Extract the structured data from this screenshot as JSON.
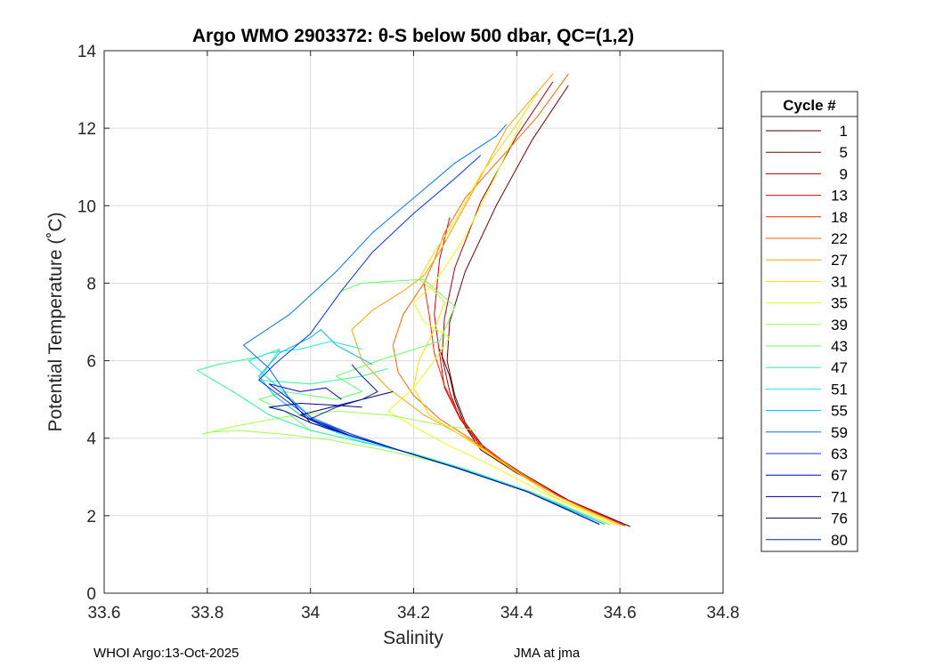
{
  "chart_data": {
    "type": "line",
    "title": "Argo WMO 2903372: θ-S below 500 dbar,  QC=(1,2)",
    "xlabel": "Salinity",
    "ylabel": "Potential Temperature (˚C)",
    "xlim": [
      33.6,
      34.8
    ],
    "ylim": [
      0,
      14
    ],
    "xticks": [
      33.6,
      33.8,
      34,
      34.2,
      34.4,
      34.6,
      34.8
    ],
    "xtick_labels": [
      "33.6",
      "33.8",
      "34",
      "34.2",
      "34.4",
      "34.6",
      "34.8"
    ],
    "yticks": [
      0,
      2,
      4,
      6,
      8,
      10,
      12,
      14
    ],
    "ytick_labels": [
      "0",
      "2",
      "4",
      "6",
      "8",
      "10",
      "12",
      "14"
    ],
    "grid": true,
    "legend_title": "Cycle #",
    "legend_position": "right-outside",
    "series": [
      {
        "name": "1",
        "color": "#4a0000",
        "x": [
          34.62,
          34.5,
          34.4,
          34.33,
          34.3,
          34.28,
          34.27,
          34.25
        ],
        "y": [
          1.72,
          2.4,
          3.1,
          3.7,
          4.3,
          5.0,
          5.6,
          6.3
        ]
      },
      {
        "name": "5",
        "color": "#7a0000",
        "x": [
          34.62,
          34.5,
          34.41,
          34.34,
          34.3,
          34.28,
          34.265,
          34.27,
          34.3,
          34.36,
          34.43,
          34.5
        ],
        "y": [
          1.72,
          2.4,
          3.1,
          3.7,
          4.4,
          5.1,
          6.0,
          7.0,
          8.3,
          10.0,
          11.7,
          13.1
        ]
      },
      {
        "name": "9",
        "color": "#b20000",
        "x": [
          34.61,
          34.49,
          34.4,
          34.33,
          34.29,
          34.27,
          34.255,
          34.26,
          34.28,
          34.33,
          34.4,
          34.47
        ],
        "y": [
          1.74,
          2.45,
          3.15,
          3.8,
          4.5,
          5.2,
          6.1,
          7.1,
          8.4,
          10.1,
          11.8,
          13.2
        ]
      },
      {
        "name": "13",
        "color": "#e00000",
        "x": [
          34.61,
          34.49,
          34.4,
          34.33,
          34.29,
          34.26,
          34.25,
          34.24,
          34.25,
          34.27
        ],
        "y": [
          1.74,
          2.45,
          3.15,
          3.8,
          4.5,
          5.3,
          6.2,
          7.2,
          8.6,
          9.7
        ]
      },
      {
        "name": "18",
        "color": "#ff2200",
        "x": [
          34.61,
          34.49,
          34.4,
          34.33,
          34.29,
          34.26,
          34.24,
          34.23,
          34.22
        ],
        "y": [
          1.74,
          2.45,
          3.15,
          3.85,
          4.55,
          5.35,
          6.2,
          7.2,
          8.0
        ]
      },
      {
        "name": "22",
        "color": "#ff6600",
        "x": [
          34.6,
          34.48,
          34.39,
          34.32,
          34.25,
          34.2,
          34.17,
          34.16,
          34.18,
          34.22,
          34.24,
          34.26,
          34.3,
          34.38,
          34.44,
          34.5
        ],
        "y": [
          1.75,
          2.5,
          3.2,
          3.9,
          4.5,
          5.1,
          5.7,
          6.4,
          7.2,
          8.0,
          8.6,
          9.3,
          10.2,
          11.4,
          12.3,
          13.4
        ]
      },
      {
        "name": "27",
        "color": "#ffa200",
        "x": [
          34.6,
          34.48,
          34.39,
          34.31,
          34.22,
          34.15,
          34.1,
          34.08,
          34.12,
          34.18,
          34.22,
          34.25,
          34.3,
          34.38,
          34.47
        ],
        "y": [
          1.75,
          2.5,
          3.25,
          3.95,
          4.6,
          5.3,
          6.0,
          6.8,
          7.3,
          7.8,
          8.2,
          8.8,
          10.0,
          12.0,
          13.4
        ]
      },
      {
        "name": "31",
        "color": "#ffdd00",
        "x": [
          34.6,
          34.47,
          34.38,
          34.3,
          34.23,
          34.2,
          34.21,
          34.24,
          34.26,
          34.24,
          34.21,
          34.24,
          34.28,
          34.33,
          34.4,
          34.44
        ],
        "y": [
          1.75,
          2.5,
          3.3,
          4.0,
          4.6,
          5.3,
          6.0,
          6.8,
          7.5,
          7.8,
          8.1,
          8.8,
          9.6,
          10.8,
          12.1,
          12.9
        ]
      },
      {
        "name": "35",
        "color": "#e6ff1a",
        "x": [
          34.59,
          34.45,
          34.35,
          34.27,
          34.2,
          34.15,
          34.2,
          34.24,
          34.27,
          34.22,
          34.2,
          34.24,
          34.3,
          34.36,
          34.41
        ],
        "y": [
          1.76,
          2.6,
          3.3,
          3.8,
          4.3,
          4.7,
          5.3,
          6.0,
          6.6,
          7.0,
          7.5,
          8.0,
          9.2,
          10.8,
          12.2
        ]
      },
      {
        "name": "39",
        "color": "#a6ff4a",
        "x": [
          34.58,
          34.44,
          34.33,
          34.24,
          34.14,
          34.04,
          33.95,
          33.86,
          33.8,
          33.79,
          33.85,
          33.95,
          34.05,
          34.15,
          34.25,
          34.32
        ],
        "y": [
          1.77,
          2.55,
          3.05,
          3.4,
          3.7,
          3.95,
          4.1,
          4.2,
          4.15,
          4.1,
          4.3,
          4.55,
          4.7,
          4.6,
          4.35,
          4.2
        ]
      },
      {
        "name": "43",
        "color": "#66ff66",
        "x": [
          34.58,
          34.43,
          34.3,
          34.2,
          34.1,
          34.0,
          33.95,
          33.9,
          33.95,
          34.05,
          34.1,
          34.05,
          34.13,
          34.25,
          34.28,
          34.22,
          34.1,
          34.06
        ],
        "y": [
          1.77,
          2.6,
          3.2,
          3.6,
          3.9,
          4.2,
          4.7,
          5.0,
          5.2,
          5.0,
          5.2,
          5.6,
          6.0,
          6.5,
          7.4,
          8.1,
          8.0,
          7.8
        ]
      },
      {
        "name": "47",
        "color": "#2aff9a",
        "x": [
          34.57,
          34.43,
          34.3,
          34.2,
          34.1,
          34.0,
          33.92,
          33.85,
          33.78,
          33.82,
          33.9,
          33.94,
          33.9,
          34.0,
          34.1,
          34.15
        ],
        "y": [
          1.78,
          2.6,
          3.2,
          3.6,
          3.9,
          4.2,
          4.6,
          5.2,
          5.75,
          5.9,
          6.1,
          6.3,
          5.5,
          5.4,
          5.6,
          5.8
        ]
      },
      {
        "name": "51",
        "color": "#1ae6ff",
        "x": [
          34.57,
          34.42,
          34.29,
          34.19,
          34.09,
          34.02,
          33.98,
          33.93,
          33.88,
          33.92,
          33.98,
          34.04,
          34.1
        ],
        "y": [
          1.78,
          2.62,
          3.22,
          3.62,
          3.95,
          4.3,
          4.8,
          5.4,
          6.0,
          6.2,
          6.3,
          6.5,
          6.3
        ]
      },
      {
        "name": "55",
        "color": "#00b8ff",
        "x": [
          34.57,
          34.42,
          34.28,
          34.17,
          34.07,
          33.98,
          33.93,
          33.9,
          33.94,
          34.0,
          34.02,
          34.05,
          34.12
        ],
        "y": [
          1.78,
          2.62,
          3.25,
          3.7,
          4.1,
          4.6,
          5.1,
          5.6,
          6.2,
          6.6,
          6.8,
          6.4,
          5.9
        ]
      },
      {
        "name": "59",
        "color": "#0077ff",
        "x": [
          34.56,
          34.42,
          34.28,
          34.17,
          34.08,
          34.0,
          33.96,
          33.92,
          33.87,
          33.96,
          34.05,
          34.12,
          34.2,
          34.28,
          34.36,
          34.38
        ],
        "y": [
          1.78,
          2.62,
          3.25,
          3.7,
          4.1,
          4.55,
          5.0,
          5.8,
          6.4,
          7.2,
          8.3,
          9.3,
          10.2,
          11.1,
          11.8,
          12.1
        ]
      },
      {
        "name": "63",
        "color": "#0033ff",
        "x": [
          34.56,
          34.42,
          34.28,
          34.17,
          34.08,
          34.0,
          33.95,
          33.9,
          33.93,
          34.0,
          34.06,
          34.12,
          34.2,
          34.28,
          34.33
        ],
        "y": [
          1.78,
          2.62,
          3.25,
          3.7,
          4.1,
          4.5,
          5.0,
          5.5,
          5.9,
          6.7,
          7.8,
          8.8,
          9.8,
          10.7,
          11.3
        ]
      },
      {
        "name": "67",
        "color": "#0000d0",
        "x": [
          34.56,
          34.42,
          34.28,
          34.17,
          34.08,
          34.0,
          33.96,
          33.92,
          33.98,
          34.03,
          34.06
        ],
        "y": [
          1.78,
          2.62,
          3.25,
          3.7,
          4.05,
          4.4,
          5.0,
          5.4,
          5.2,
          5.3,
          5.0
        ]
      },
      {
        "name": "71",
        "color": "#00009a",
        "x": [
          34.56,
          34.42,
          34.28,
          34.17,
          34.08,
          34.0,
          33.95,
          33.92,
          33.98,
          34.05,
          34.1
        ],
        "y": [
          1.78,
          2.62,
          3.25,
          3.7,
          4.05,
          4.4,
          4.7,
          4.8,
          4.9,
          4.85,
          4.8
        ]
      },
      {
        "name": "76",
        "color": "#000070",
        "x": [
          34.56,
          34.42,
          34.28,
          34.17,
          34.08,
          34.02,
          33.98,
          34.04,
          34.1,
          34.16
        ],
        "y": [
          1.78,
          2.62,
          3.25,
          3.7,
          4.05,
          4.35,
          4.6,
          4.8,
          5.0,
          5.2
        ]
      },
      {
        "name": "80",
        "color": "#0020c0",
        "x": [
          34.56,
          34.42,
          34.28,
          34.17,
          34.08,
          34.0,
          34.05,
          34.1,
          34.13,
          34.1,
          34.08
        ],
        "y": [
          1.78,
          2.62,
          3.25,
          3.7,
          4.05,
          4.5,
          4.8,
          5.0,
          5.2,
          5.6,
          5.9
        ]
      }
    ]
  },
  "footer": {
    "left": "WHOI Argo:13-Oct-2025",
    "right": "JMA at jma"
  }
}
